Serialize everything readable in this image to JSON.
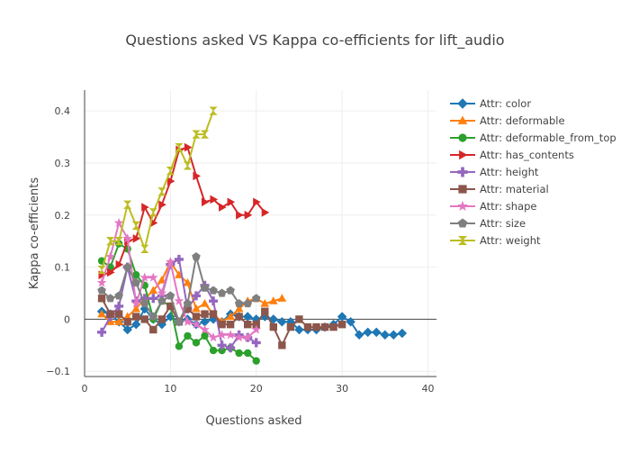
{
  "chart_data": {
    "type": "line",
    "title": "Questions asked VS Kappa co-efficients for lift_audio",
    "xlabel": "Questions asked",
    "ylabel": "Kappa co-efficients",
    "xlim": [
      0,
      41
    ],
    "ylim": [
      -0.11,
      0.44
    ],
    "xticks": [
      0,
      10,
      20,
      30,
      40
    ],
    "yticks": [
      -0.1,
      0,
      0.1,
      0.2,
      0.3,
      0.4
    ],
    "grid": true,
    "legend_position": "right",
    "series": [
      {
        "name": "Attr: color",
        "color": "#1f77b4",
        "marker": "diamond",
        "x": [
          2,
          3,
          4,
          5,
          6,
          7,
          8,
          9,
          10,
          11,
          12,
          13,
          14,
          15,
          16,
          17,
          18,
          19,
          20,
          21,
          22,
          23,
          24,
          25,
          26,
          27,
          28,
          29,
          30,
          31,
          32,
          33,
          34,
          35,
          36,
          37
        ],
        "y": [
          0.015,
          0.01,
          -0.005,
          -0.02,
          -0.01,
          0.02,
          0.0,
          -0.01,
          0.005,
          -0.005,
          0.0,
          -0.01,
          -0.005,
          0.0,
          -0.005,
          0.01,
          0.005,
          0.005,
          0.0,
          0.005,
          0.0,
          -0.005,
          -0.005,
          -0.02,
          -0.02,
          -0.02,
          -0.015,
          -0.01,
          0.005,
          -0.005,
          -0.03,
          -0.025,
          -0.025,
          -0.03,
          -0.03,
          -0.027
        ]
      },
      {
        "name": "Attr: deformable",
        "color": "#ff7f0e",
        "marker": "triangle-up",
        "x": [
          2,
          3,
          4,
          5,
          6,
          7,
          8,
          9,
          10,
          11,
          12,
          13,
          14,
          15,
          16,
          17,
          18,
          19,
          20,
          21,
          22,
          23
        ],
        "y": [
          0.01,
          -0.005,
          -0.005,
          0.005,
          0.02,
          0.04,
          0.055,
          0.075,
          0.11,
          0.085,
          0.07,
          0.02,
          0.03,
          0.01,
          -0.005,
          0.005,
          0.02,
          0.035,
          0.04,
          0.03,
          0.035,
          0.04
        ]
      },
      {
        "name": "Attr: deformable_from_top",
        "color": "#2ca02c",
        "marker": "circle",
        "x": [
          2,
          3,
          4,
          5,
          6,
          7,
          8,
          9,
          10,
          11,
          12,
          13,
          14,
          15,
          16,
          17,
          18,
          19,
          20
        ],
        "y": [
          0.112,
          0.1,
          0.145,
          0.135,
          0.085,
          0.065,
          0.0,
          0.035,
          0.025,
          -0.052,
          -0.032,
          -0.045,
          -0.032,
          -0.06,
          -0.06,
          -0.055,
          -0.065,
          -0.065,
          -0.08
        ]
      },
      {
        "name": "Attr: has_contents",
        "color": "#d62728",
        "marker": "triangle-right",
        "x": [
          2,
          3,
          4,
          5,
          6,
          7,
          8,
          9,
          10,
          11,
          12,
          13,
          14,
          15,
          16,
          17,
          18,
          19,
          20,
          21
        ],
        "y": [
          0.085,
          0.09,
          0.105,
          0.15,
          0.155,
          0.215,
          0.185,
          0.22,
          0.265,
          0.325,
          0.33,
          0.275,
          0.225,
          0.23,
          0.215,
          0.225,
          0.2,
          0.2,
          0.225,
          0.205
        ]
      },
      {
        "name": "Attr: height",
        "color": "#9467bd",
        "marker": "cross",
        "x": [
          2,
          3,
          4,
          5,
          6,
          7,
          8,
          9,
          10,
          11,
          12,
          13,
          14,
          15,
          16,
          17,
          18,
          19,
          20
        ],
        "y": [
          -0.025,
          0.005,
          0.025,
          0.1,
          0.035,
          0.04,
          0.04,
          0.045,
          0.105,
          0.115,
          0.02,
          0.045,
          0.065,
          0.035,
          -0.05,
          -0.055,
          -0.03,
          -0.035,
          -0.045
        ]
      },
      {
        "name": "Attr: material",
        "color": "#8c564b",
        "marker": "square",
        "x": [
          2,
          3,
          4,
          5,
          6,
          7,
          8,
          9,
          10,
          11,
          12,
          13,
          14,
          15,
          16,
          17,
          18,
          19,
          20,
          21,
          22,
          23,
          24,
          25,
          26,
          27,
          28,
          29,
          30
        ],
        "y": [
          0.04,
          0.01,
          0.01,
          -0.005,
          0.005,
          0.0,
          -0.02,
          0.0,
          0.025,
          -0.005,
          0.02,
          0.005,
          0.01,
          0.01,
          -0.01,
          -0.01,
          0.005,
          -0.01,
          -0.01,
          0.015,
          -0.015,
          -0.05,
          -0.015,
          0.0,
          -0.015,
          -0.015,
          -0.015,
          -0.015,
          -0.01
        ]
      },
      {
        "name": "Attr: shape",
        "color": "#e377c2",
        "marker": "star",
        "x": [
          2,
          3,
          4,
          5,
          6,
          7,
          8,
          9,
          10,
          11,
          12,
          13,
          14,
          15,
          16,
          17,
          18,
          19,
          20
        ],
        "y": [
          0.07,
          0.12,
          0.185,
          0.155,
          0.03,
          0.08,
          0.08,
          0.05,
          0.11,
          0.035,
          -0.005,
          -0.01,
          -0.02,
          -0.035,
          -0.03,
          -0.03,
          -0.035,
          -0.035,
          -0.02
        ]
      },
      {
        "name": "Attr: size",
        "color": "#7f7f7f",
        "marker": "pentagon",
        "x": [
          2,
          3,
          4,
          5,
          6,
          7,
          8,
          9,
          10,
          11,
          12,
          13,
          14,
          15,
          16,
          17,
          18,
          19,
          20
        ],
        "y": [
          0.055,
          0.04,
          0.045,
          0.1,
          0.07,
          0.03,
          0.005,
          0.035,
          0.045,
          -0.005,
          0.03,
          0.12,
          0.06,
          0.055,
          0.05,
          0.055,
          0.03,
          0.03,
          0.04
        ]
      },
      {
        "name": "Attr: weight",
        "color": "#bcbd22",
        "marker": "hourglass",
        "x": [
          2,
          3,
          4,
          5,
          6,
          7,
          8,
          9,
          10,
          11,
          12,
          13,
          14,
          15
        ],
        "y": [
          0.095,
          0.15,
          0.15,
          0.22,
          0.18,
          0.135,
          0.205,
          0.245,
          0.285,
          0.33,
          0.295,
          0.355,
          0.355,
          0.4
        ]
      }
    ]
  }
}
